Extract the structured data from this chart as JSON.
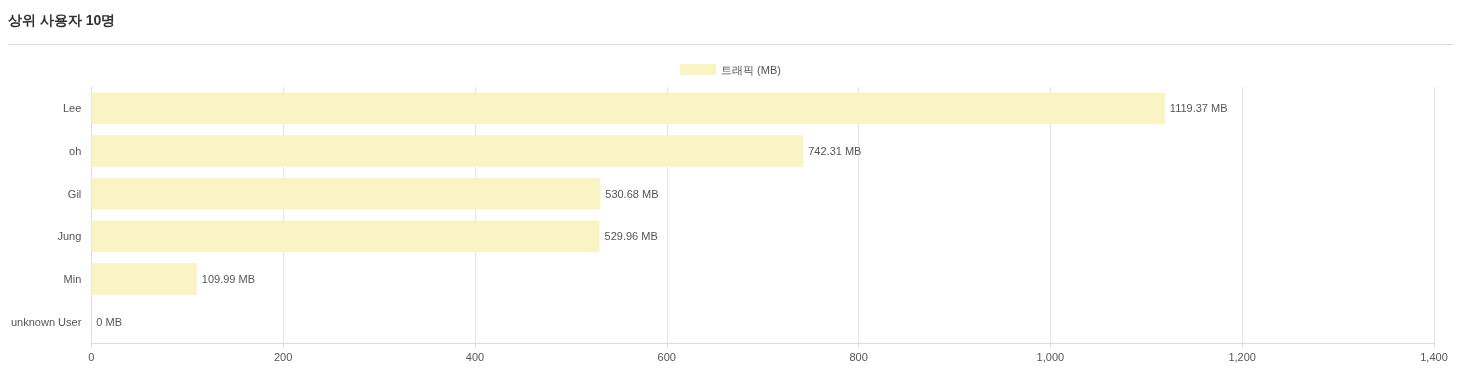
{
  "chart_data": {
    "type": "bar",
    "orientation": "horizontal",
    "title": "상위 사용자 10명",
    "categories": [
      "Lee",
      "oh",
      "Gil",
      "Jung",
      "Min",
      "unknown User"
    ],
    "series": [
      {
        "name": "트래픽 (MB)",
        "color": "#faf3c3",
        "values": [
          1119.37,
          742.31,
          530.68,
          529.96,
          109.99,
          0
        ],
        "value_labels": [
          "1119.37 MB",
          "742.31 MB",
          "530.68 MB",
          "529.96 MB",
          "109.99 MB",
          "0 MB"
        ]
      }
    ],
    "xlim": [
      0,
      1400
    ],
    "xticks": [
      0,
      200,
      400,
      600,
      800,
      {
        "value": 1000,
        "label": "1,000"
      },
      {
        "value": 1200,
        "label": "1,200"
      },
      {
        "value": 1400,
        "label": "1,400"
      }
    ],
    "grid": "x",
    "legend": "top"
  }
}
